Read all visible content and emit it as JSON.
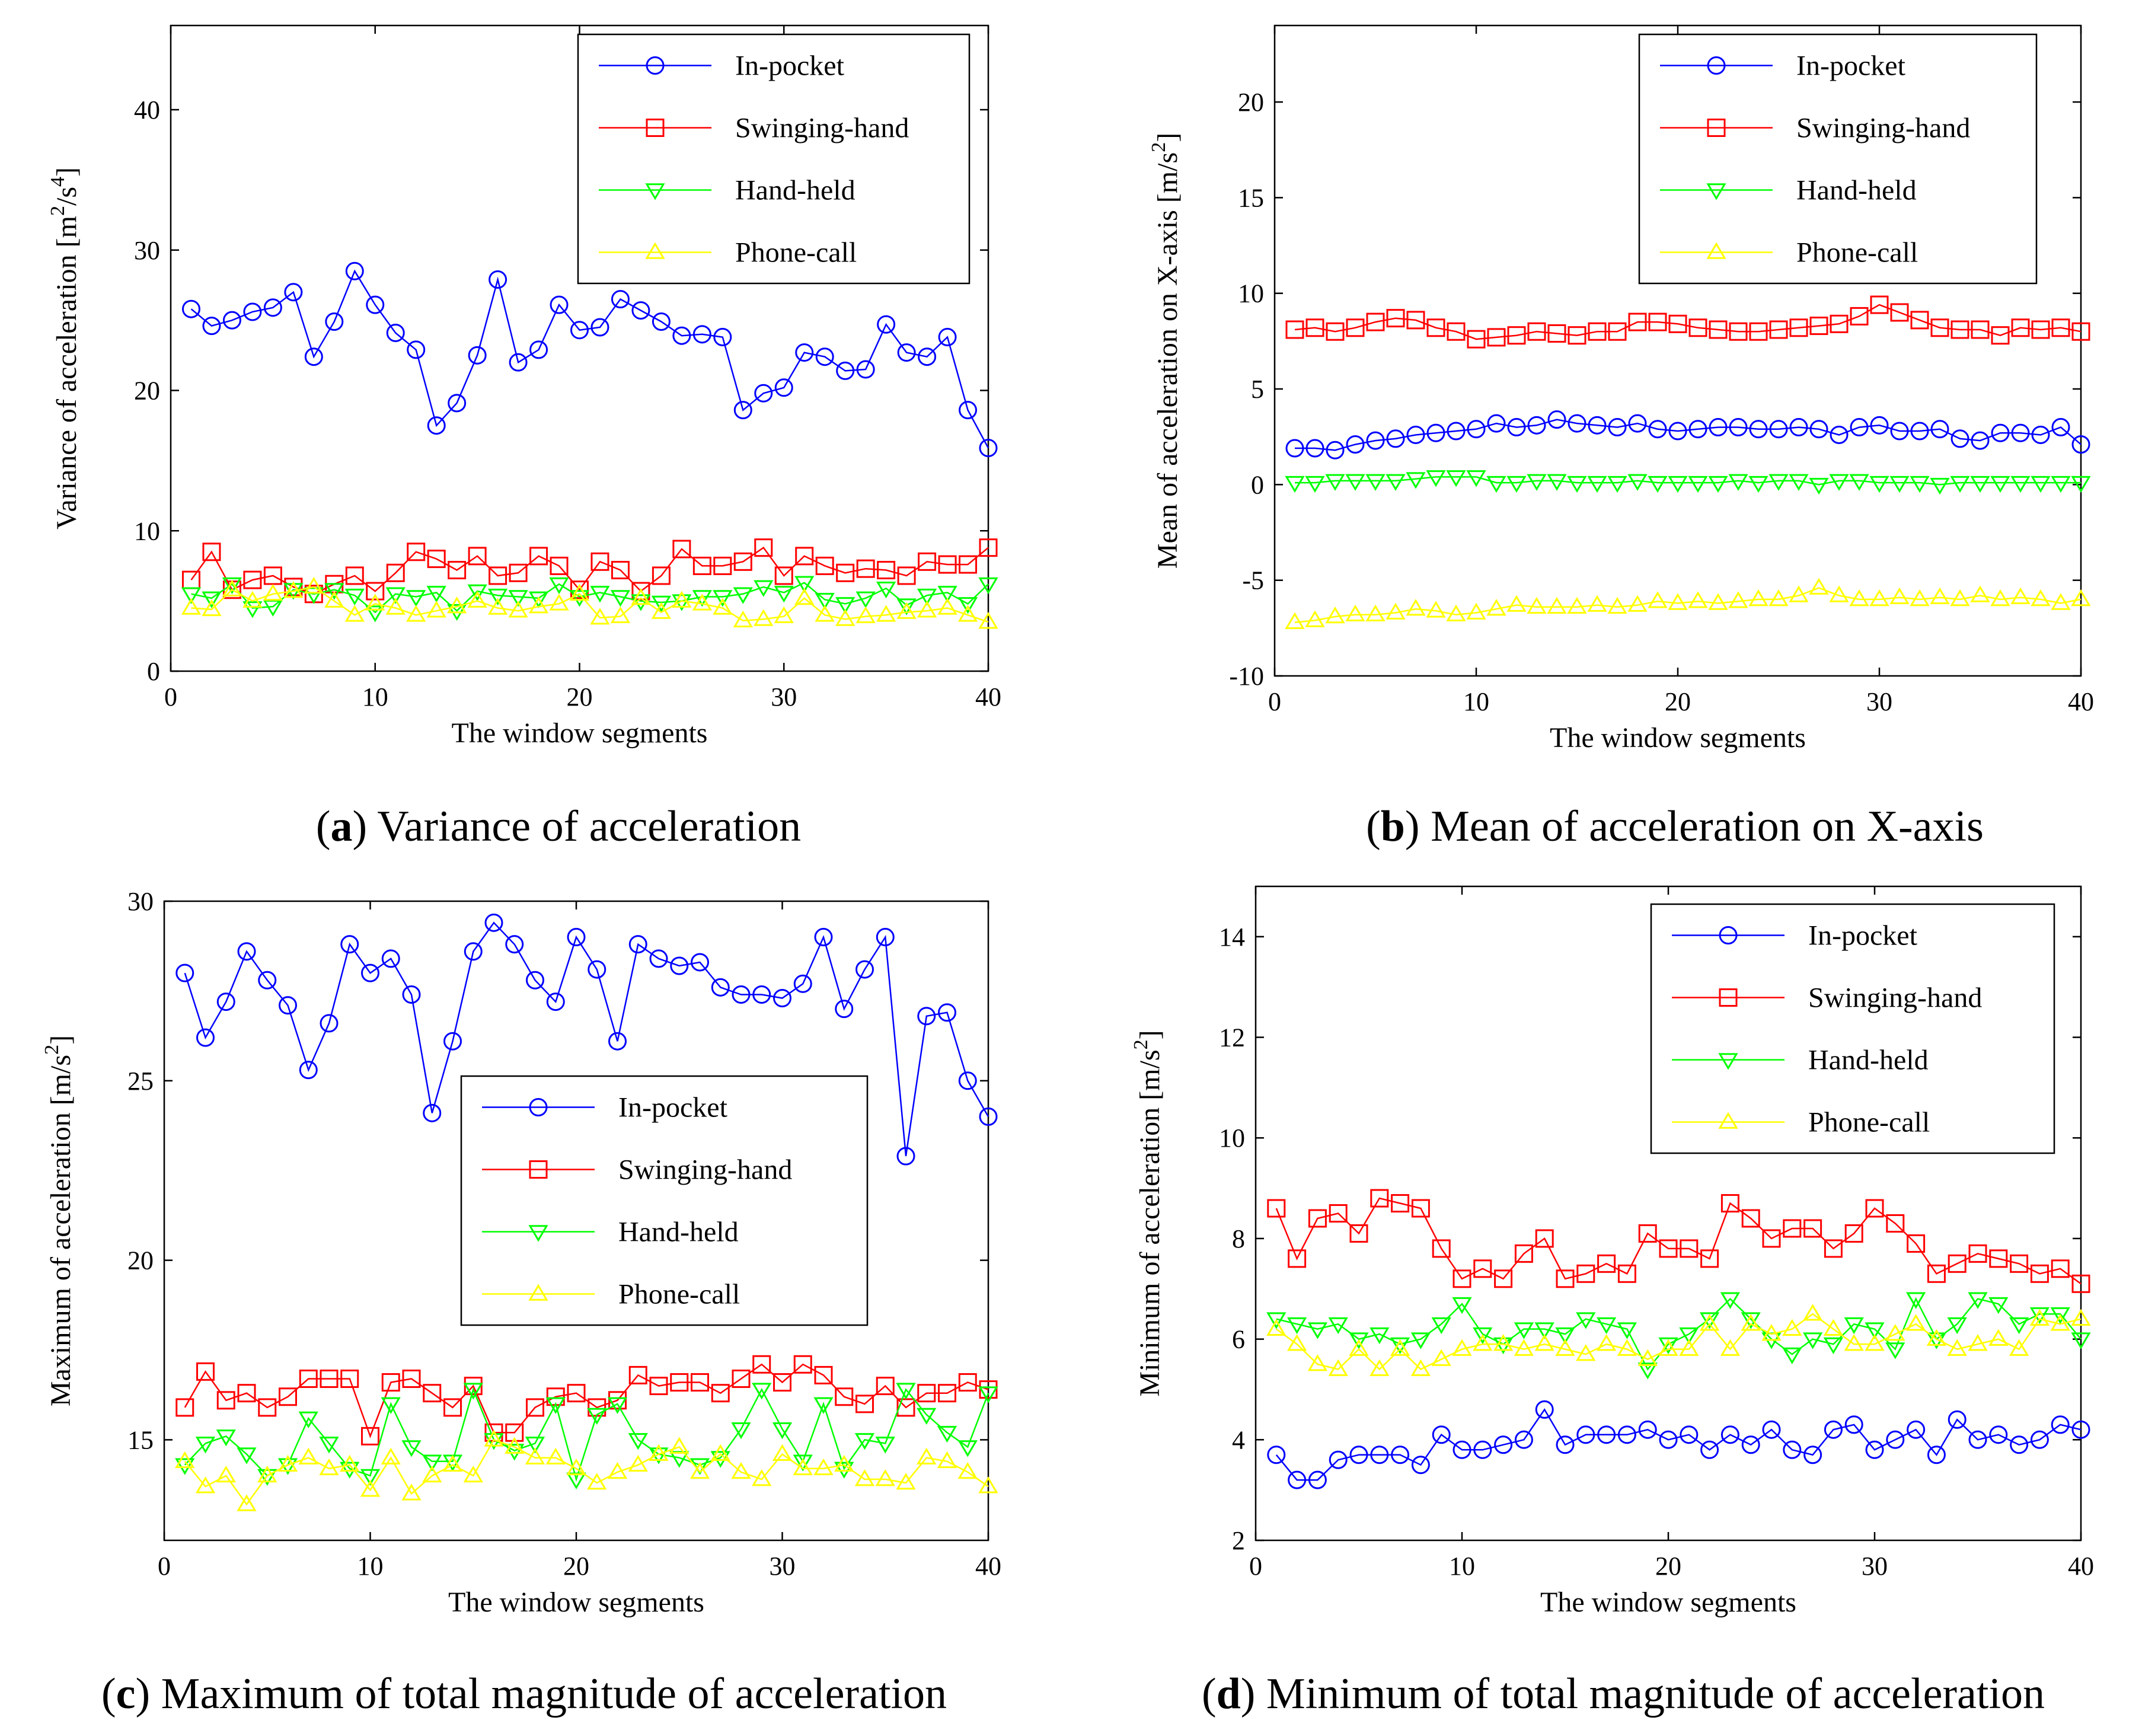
{
  "figure": {
    "captions": [
      {
        "letter": "a",
        "text": "Variance of acceleration"
      },
      {
        "letter": "b",
        "text": "Mean of acceleration on X-axis"
      },
      {
        "letter": "c",
        "text": "Maximum of total magnitude of acceleration"
      },
      {
        "letter": "d",
        "text": "Minimum of total magnitude of acceleration"
      }
    ]
  },
  "colors": {
    "in_pocket": "#0000ff",
    "swinging_hand": "#ff0000",
    "hand_held": "#00ff00",
    "phone_call": "#ffff00",
    "axis": "#000000"
  },
  "chart_data": [
    {
      "id": "a",
      "type": "line",
      "title": "",
      "xlabel": "The window segments",
      "ylabel": "Variance of acceleration [m²/s⁴]",
      "ylabel_main": "Variance of acceleration [m",
      "ylabel_sup1": "2",
      "ylabel_mid": "/s",
      "ylabel_sup2": "4",
      "ylabel_end": "]",
      "xlim": [
        0,
        40
      ],
      "ylim": [
        0,
        46
      ],
      "xticks": [
        0,
        10,
        20,
        30,
        40
      ],
      "yticks": [
        0,
        10,
        20,
        30,
        40
      ],
      "legend_position": "top-right",
      "x": [
        1,
        2,
        3,
        4,
        5,
        6,
        7,
        8,
        9,
        10,
        11,
        12,
        13,
        14,
        15,
        16,
        17,
        18,
        19,
        20,
        21,
        22,
        23,
        24,
        25,
        26,
        27,
        28,
        29,
        30,
        31,
        32,
        33,
        34,
        35,
        36,
        37,
        38,
        39,
        40
      ],
      "series": [
        {
          "name": "In-pocket",
          "marker": "circle",
          "color": "#0000ff",
          "values": [
            25.8,
            24.6,
            25.0,
            25.6,
            25.9,
            27.0,
            22.4,
            24.9,
            28.5,
            26.1,
            24.1,
            22.9,
            17.5,
            19.1,
            22.5,
            27.9,
            22.0,
            22.9,
            26.1,
            24.3,
            24.5,
            26.5,
            25.7,
            24.9,
            23.9,
            24.0,
            23.8,
            18.6,
            19.8,
            20.2,
            22.7,
            22.4,
            21.4,
            21.5,
            24.7,
            22.7,
            22.4,
            23.8,
            18.6,
            15.9
          ]
        },
        {
          "name": "Swinging-hand",
          "marker": "square",
          "color": "#ff0000",
          "values": [
            6.5,
            8.5,
            5.8,
            6.5,
            6.8,
            6.0,
            5.5,
            6.2,
            6.8,
            5.7,
            7.0,
            8.5,
            8.0,
            7.2,
            8.2,
            6.8,
            7.0,
            8.2,
            7.5,
            5.8,
            7.8,
            7.2,
            5.7,
            6.8,
            8.7,
            7.5,
            7.5,
            7.8,
            8.8,
            6.8,
            8.2,
            7.5,
            7.0,
            7.3,
            7.2,
            6.8,
            7.8,
            7.6,
            7.6,
            8.8
          ]
        },
        {
          "name": "Hand-held",
          "marker": "triangle-down",
          "color": "#00ff00",
          "values": [
            5.5,
            5.2,
            6.2,
            4.5,
            4.6,
            5.8,
            5.5,
            5.8,
            5.4,
            4.2,
            5.5,
            5.3,
            5.6,
            4.3,
            5.7,
            5.4,
            5.3,
            5.2,
            6.2,
            5.3,
            5.6,
            5.3,
            5.0,
            4.9,
            5.0,
            5.3,
            5.3,
            5.5,
            6.0,
            5.6,
            6.3,
            5.1,
            4.8,
            5.2,
            5.9,
            4.7,
            5.4,
            5.6,
            4.8,
            6.2
          ]
        },
        {
          "name": "Phone-call",
          "marker": "triangle-up",
          "color": "#ffff00",
          "values": [
            4.5,
            4.4,
            5.8,
            5.0,
            5.5,
            5.7,
            6.0,
            5.0,
            4.0,
            4.8,
            4.5,
            4.0,
            4.3,
            4.6,
            5.0,
            4.5,
            4.3,
            4.6,
            4.8,
            5.5,
            3.8,
            3.9,
            5.2,
            4.2,
            5.0,
            4.8,
            4.5,
            3.6,
            3.7,
            3.9,
            5.2,
            4.0,
            3.7,
            3.9,
            4.0,
            4.2,
            4.3,
            4.5,
            4.0,
            3.5
          ]
        }
      ]
    },
    {
      "id": "b",
      "type": "line",
      "title": "",
      "xlabel": "The window segments",
      "ylabel": "Mean of acceleration on X-axis [m/s²]",
      "ylabel_main": "Mean of acceleration on X-axis [m/s",
      "ylabel_sup1": "2",
      "ylabel_end": "]",
      "xlim": [
        0,
        40
      ],
      "ylim": [
        -10,
        24
      ],
      "xticks": [
        0,
        10,
        20,
        30,
        40
      ],
      "yticks": [
        -10,
        -5,
        0,
        5,
        10,
        15,
        20
      ],
      "legend_position": "top-right",
      "x": [
        1,
        2,
        3,
        4,
        5,
        6,
        7,
        8,
        9,
        10,
        11,
        12,
        13,
        14,
        15,
        16,
        17,
        18,
        19,
        20,
        21,
        22,
        23,
        24,
        25,
        26,
        27,
        28,
        29,
        30,
        31,
        32,
        33,
        34,
        35,
        36,
        37,
        38,
        39,
        40
      ],
      "series": [
        {
          "name": "In-pocket",
          "marker": "circle",
          "color": "#0000ff",
          "values": [
            1.9,
            1.9,
            1.8,
            2.1,
            2.3,
            2.4,
            2.6,
            2.7,
            2.8,
            2.9,
            3.2,
            3.0,
            3.1,
            3.4,
            3.2,
            3.1,
            3.0,
            3.2,
            2.9,
            2.8,
            2.9,
            3.0,
            3.0,
            2.9,
            2.9,
            3.0,
            2.9,
            2.6,
            3.0,
            3.1,
            2.8,
            2.8,
            2.9,
            2.4,
            2.3,
            2.7,
            2.7,
            2.6,
            3.0,
            2.1
          ]
        },
        {
          "name": "Swinging-hand",
          "marker": "square",
          "color": "#ff0000",
          "values": [
            8.1,
            8.2,
            8.0,
            8.2,
            8.5,
            8.7,
            8.6,
            8.2,
            8.0,
            7.6,
            7.7,
            7.8,
            8.0,
            7.9,
            7.8,
            8.0,
            8.0,
            8.5,
            8.5,
            8.4,
            8.2,
            8.1,
            8.0,
            8.0,
            8.1,
            8.2,
            8.3,
            8.4,
            8.8,
            9.4,
            9.0,
            8.6,
            8.2,
            8.1,
            8.1,
            7.8,
            8.2,
            8.1,
            8.2,
            8.0
          ]
        },
        {
          "name": "Hand-held",
          "marker": "triangle-down",
          "color": "#00ff00",
          "values": [
            0.1,
            0.1,
            0.2,
            0.2,
            0.2,
            0.2,
            0.3,
            0.4,
            0.4,
            0.4,
            0.1,
            0.1,
            0.2,
            0.2,
            0.1,
            0.1,
            0.1,
            0.2,
            0.1,
            0.1,
            0.1,
            0.1,
            0.2,
            0.1,
            0.2,
            0.2,
            0.0,
            0.2,
            0.2,
            0.1,
            0.1,
            0.1,
            0.0,
            0.1,
            0.1,
            0.1,
            0.1,
            0.1,
            0.1,
            0.1
          ]
        },
        {
          "name": "Phone-call",
          "marker": "triangle-up",
          "color": "#ffff00",
          "values": [
            -7.2,
            -7.1,
            -6.9,
            -6.8,
            -6.8,
            -6.7,
            -6.5,
            -6.6,
            -6.8,
            -6.7,
            -6.5,
            -6.3,
            -6.4,
            -6.4,
            -6.4,
            -6.3,
            -6.4,
            -6.3,
            -6.1,
            -6.2,
            -6.1,
            -6.2,
            -6.1,
            -6.0,
            -6.0,
            -5.8,
            -5.4,
            -5.8,
            -6.0,
            -6.0,
            -5.9,
            -6.0,
            -5.9,
            -6.0,
            -5.8,
            -6.0,
            -5.9,
            -6.0,
            -6.2,
            -6.0
          ]
        }
      ]
    },
    {
      "id": "c",
      "type": "line",
      "title": "",
      "xlabel": "The window segments",
      "ylabel": "Maximum of acceleration [m/s²]",
      "ylabel_main": "Maximum of acceleration [m/s",
      "ylabel_sup1": "2",
      "ylabel_end": "]",
      "xlim": [
        0,
        40
      ],
      "ylim": [
        12.2,
        30
      ],
      "xticks": [
        0,
        10,
        20,
        30,
        40
      ],
      "yticks": [
        15,
        20,
        25,
        30
      ],
      "legend_position": "center",
      "x": [
        1,
        2,
        3,
        4,
        5,
        6,
        7,
        8,
        9,
        10,
        11,
        12,
        13,
        14,
        15,
        16,
        17,
        18,
        19,
        20,
        21,
        22,
        23,
        24,
        25,
        26,
        27,
        28,
        29,
        30,
        31,
        32,
        33,
        34,
        35,
        36,
        37,
        38,
        39,
        40
      ],
      "series": [
        {
          "name": "In-pocket",
          "marker": "circle",
          "color": "#0000ff",
          "values": [
            28.0,
            26.2,
            27.2,
            28.6,
            27.8,
            27.1,
            25.3,
            26.6,
            28.8,
            28.0,
            28.4,
            27.4,
            24.1,
            26.1,
            28.6,
            29.4,
            28.8,
            27.8,
            27.2,
            29.0,
            28.1,
            26.1,
            28.8,
            28.4,
            28.2,
            28.3,
            27.6,
            27.4,
            27.4,
            27.3,
            27.7,
            29.0,
            27.0,
            28.1,
            29.0,
            22.9,
            26.8,
            26.9,
            25.0,
            24.0
          ]
        },
        {
          "name": "Swinging-hand",
          "marker": "square",
          "color": "#ff0000",
          "values": [
            15.9,
            16.9,
            16.1,
            16.3,
            15.9,
            16.2,
            16.7,
            16.7,
            16.7,
            15.1,
            16.6,
            16.7,
            16.3,
            15.9,
            16.5,
            15.2,
            15.2,
            15.9,
            16.2,
            16.3,
            15.9,
            16.1,
            16.8,
            16.5,
            16.6,
            16.6,
            16.3,
            16.7,
            17.1,
            16.6,
            17.1,
            16.8,
            16.2,
            16.0,
            16.5,
            15.9,
            16.3,
            16.3,
            16.6,
            16.4
          ]
        },
        {
          "name": "Hand-held",
          "marker": "triangle-down",
          "color": "#00ff00",
          "values": [
            14.3,
            14.9,
            15.1,
            14.6,
            14.0,
            14.3,
            15.6,
            14.9,
            14.2,
            14.0,
            16.0,
            14.8,
            14.4,
            14.4,
            16.4,
            15.0,
            14.7,
            14.9,
            16.0,
            13.9,
            15.7,
            16.0,
            15.0,
            14.6,
            14.5,
            14.3,
            14.5,
            15.3,
            16.4,
            15.3,
            14.4,
            16.0,
            14.2,
            15.0,
            14.9,
            16.4,
            15.7,
            15.2,
            14.8,
            16.3
          ]
        },
        {
          "name": "Phone-call",
          "marker": "triangle-up",
          "color": "#ffff00",
          "values": [
            14.4,
            13.7,
            14.0,
            13.2,
            14.0,
            14.3,
            14.5,
            14.2,
            14.3,
            13.6,
            14.5,
            13.5,
            14.0,
            14.3,
            14.0,
            15.0,
            14.8,
            14.5,
            14.5,
            14.2,
            13.8,
            14.1,
            14.3,
            14.6,
            14.8,
            14.1,
            14.6,
            14.1,
            13.9,
            14.6,
            14.2,
            14.2,
            14.3,
            13.9,
            13.9,
            13.8,
            14.5,
            14.4,
            14.1,
            13.7
          ]
        }
      ]
    },
    {
      "id": "d",
      "type": "line",
      "title": "",
      "xlabel": "The window segments",
      "ylabel": "Minimum of acceleration [m/s²]",
      "ylabel_main": "Minimum of acceleration [m/s",
      "ylabel_sup1": "2",
      "ylabel_end": "]",
      "xlim": [
        0,
        40
      ],
      "ylim": [
        2,
        15
      ],
      "xticks": [
        0,
        10,
        20,
        30,
        40
      ],
      "yticks": [
        2,
        4,
        6,
        8,
        10,
        12,
        14
      ],
      "legend_position": "top-right",
      "x": [
        1,
        2,
        3,
        4,
        5,
        6,
        7,
        8,
        9,
        10,
        11,
        12,
        13,
        14,
        15,
        16,
        17,
        18,
        19,
        20,
        21,
        22,
        23,
        24,
        25,
        26,
        27,
        28,
        29,
        30,
        31,
        32,
        33,
        34,
        35,
        36,
        37,
        38,
        39,
        40
      ],
      "series": [
        {
          "name": "In-pocket",
          "marker": "circle",
          "color": "#0000ff",
          "values": [
            3.7,
            3.2,
            3.2,
            3.6,
            3.7,
            3.7,
            3.7,
            3.5,
            4.1,
            3.8,
            3.8,
            3.9,
            4.0,
            4.6,
            3.9,
            4.1,
            4.1,
            4.1,
            4.2,
            4.0,
            4.1,
            3.8,
            4.1,
            3.9,
            4.2,
            3.8,
            3.7,
            4.2,
            4.3,
            3.8,
            4.0,
            4.2,
            3.7,
            4.4,
            4.0,
            4.1,
            3.9,
            4.0,
            4.3,
            4.2
          ]
        },
        {
          "name": "Swinging-hand",
          "marker": "square",
          "color": "#ff0000",
          "values": [
            8.6,
            7.6,
            8.4,
            8.5,
            8.1,
            8.8,
            8.7,
            8.6,
            7.8,
            7.2,
            7.4,
            7.2,
            7.7,
            8.0,
            7.2,
            7.3,
            7.5,
            7.3,
            8.1,
            7.8,
            7.8,
            7.6,
            8.7,
            8.4,
            8.0,
            8.2,
            8.2,
            7.8,
            8.1,
            8.6,
            8.3,
            7.9,
            7.3,
            7.5,
            7.7,
            7.6,
            7.5,
            7.3,
            7.4,
            7.1
          ]
        },
        {
          "name": "Hand-held",
          "marker": "triangle-down",
          "color": "#00ff00",
          "values": [
            6.4,
            6.3,
            6.2,
            6.3,
            6.0,
            6.1,
            5.9,
            6.0,
            6.3,
            6.7,
            6.1,
            5.9,
            6.2,
            6.2,
            6.1,
            6.4,
            6.3,
            6.2,
            5.4,
            5.9,
            6.1,
            6.4,
            6.8,
            6.4,
            6.0,
            5.7,
            6.0,
            5.9,
            6.3,
            6.2,
            5.8,
            6.8,
            6.0,
            6.3,
            6.8,
            6.7,
            6.3,
            6.5,
            6.5,
            6.0
          ]
        },
        {
          "name": "Phone-call",
          "marker": "triangle-up",
          "color": "#ffff00",
          "values": [
            6.2,
            5.9,
            5.5,
            5.4,
            5.8,
            5.4,
            5.8,
            5.4,
            5.6,
            5.8,
            5.9,
            5.9,
            5.8,
            5.9,
            5.8,
            5.7,
            5.9,
            5.8,
            5.6,
            5.8,
            5.8,
            6.3,
            5.8,
            6.3,
            6.1,
            6.2,
            6.5,
            6.2,
            5.9,
            5.9,
            6.1,
            6.3,
            6.0,
            5.8,
            5.9,
            6.0,
            5.8,
            6.4,
            6.3,
            6.4
          ]
        }
      ]
    }
  ]
}
